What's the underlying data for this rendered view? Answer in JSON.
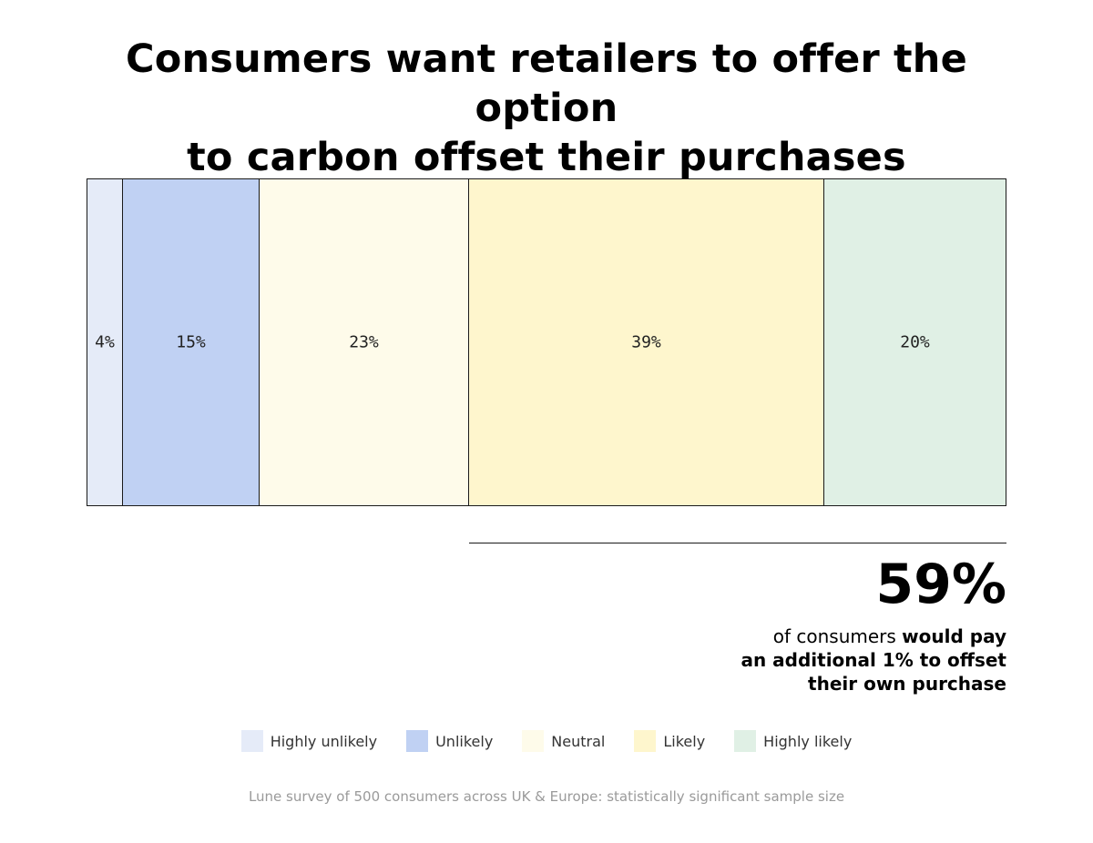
{
  "title": {
    "line1": "Consumers want retailers to offer the option",
    "line2": "to carbon offset their purchases"
  },
  "chart_data": {
    "type": "bar",
    "orientation": "horizontal-stacked-100",
    "title": "Consumers want retailers to offer the option to carbon offset their purchases",
    "categories": [
      "Highly unlikely",
      "Unlikely",
      "Neutral",
      "Likely",
      "Highly likely"
    ],
    "values": [
      4,
      15,
      23,
      39,
      20
    ],
    "value_labels": [
      "4%",
      "15%",
      "23%",
      "39%",
      "20%"
    ],
    "unit": "%",
    "colors": [
      "#e5ebf8",
      "#c0d1f3",
      "#fefbea",
      "#fef6cd",
      "#e0f0e5"
    ],
    "legend_position": "bottom",
    "grid": false
  },
  "callout": {
    "value": "59%",
    "line1_plain": "of consumers ",
    "line1_bold": "would pay",
    "line2": "an additional 1% to offset",
    "line3": "their own purchase"
  },
  "footnote": "Lune survey of 500 consumers across UK & Europe: statistically significant sample size"
}
